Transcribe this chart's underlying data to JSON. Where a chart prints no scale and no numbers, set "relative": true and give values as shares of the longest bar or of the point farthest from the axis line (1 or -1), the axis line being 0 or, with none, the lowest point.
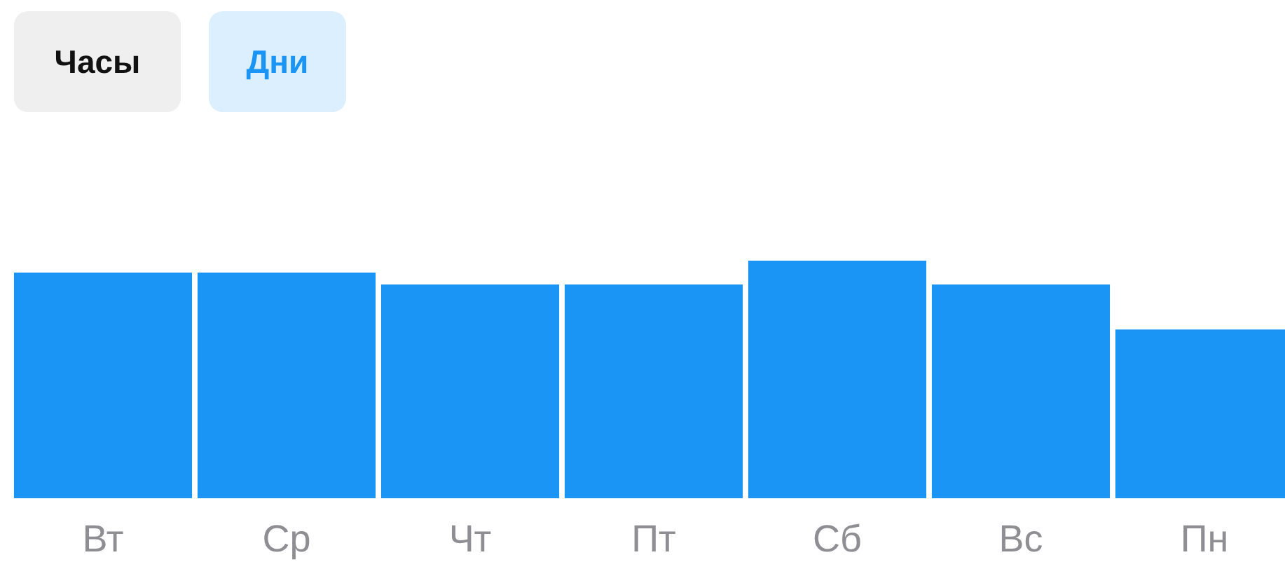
{
  "chart_data": {
    "type": "bar",
    "relative": true,
    "annotations": [
      "Часы",
      "Дни"
    ],
    "categories": [
      "Вт",
      "Ср",
      "Чт",
      "Пт",
      "Сб",
      "Вс",
      "Пн"
    ],
    "values": [
      0.95,
      0.95,
      0.9,
      0.9,
      1,
      0.9,
      0.71
    ],
    "color": "#1a94f5"
  }
}
